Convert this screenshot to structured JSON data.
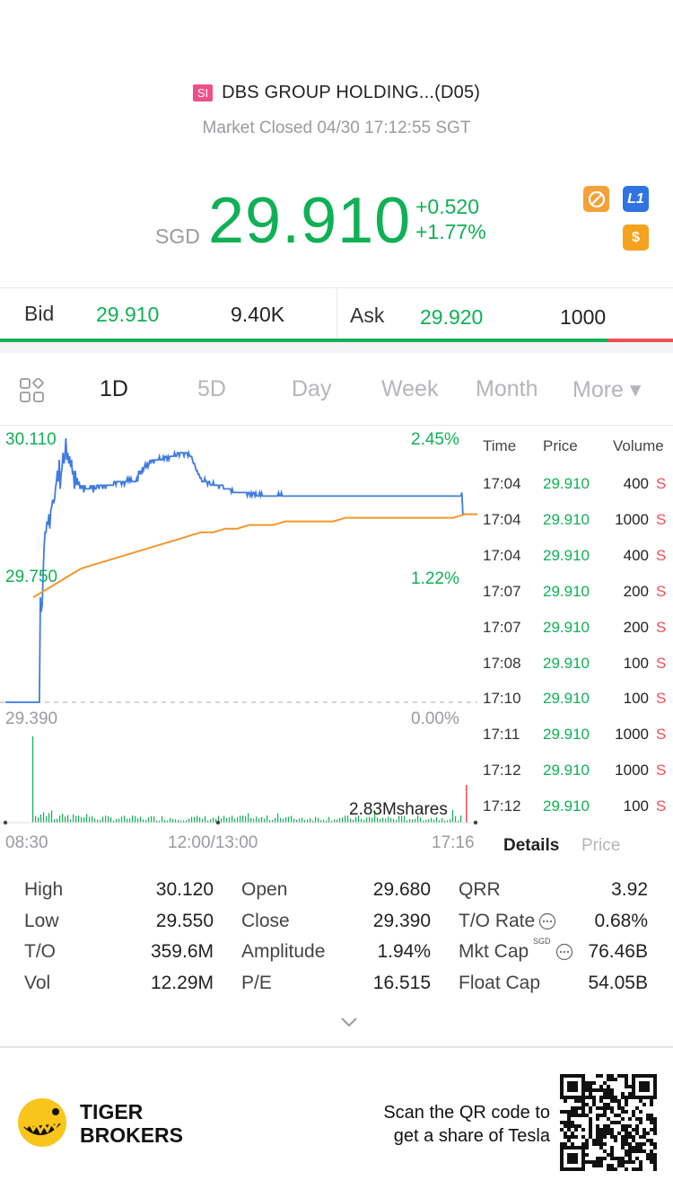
{
  "header": {
    "badge": "SI",
    "title": "DBS GROUP HOLDING...(D05)",
    "status": "Market Closed 04/30 17:12:55 SGT"
  },
  "quote": {
    "currency": "SGD",
    "price": "29.910",
    "change": "+0.520",
    "change_pct": "+1.77%",
    "icons": [
      "no-short-icon",
      "l1-icon",
      "dollar-icon"
    ],
    "l1_label": "L1",
    "dollar_label": "$"
  },
  "bidask": {
    "bid_label": "Bid",
    "bid_price": "29.910",
    "bid_vol": "9.40K",
    "ask_label": "Ask",
    "ask_price": "29.920",
    "ask_vol": "1000",
    "bid_ratio": 0.903
  },
  "tabs": {
    "items": [
      "1D",
      "5D",
      "Day",
      "Week",
      "Month",
      "More ▾"
    ],
    "active": "1D"
  },
  "chart": {
    "price_high_label": "30.110",
    "price_mid_label": "29.750",
    "price_low_label": "29.390",
    "pct_high_label": "2.45%",
    "pct_mid_label": "1.22%",
    "pct_low_label": "0.00%",
    "volume_label": "2.83Mshares",
    "x_labels": [
      "08:30",
      "12:00/13:00",
      "17:16"
    ],
    "colors": {
      "price_line": "#3f7be0",
      "avg_line": "#f2962c",
      "volume": "#10b055"
    }
  },
  "chart_data": {
    "type": "line",
    "ylim": [
      29.39,
      30.11
    ],
    "series": [
      {
        "values": [
          29.39,
          29.39,
          29.39,
          29.39,
          29.39,
          29.39,
          29.39,
          29.39,
          29.39,
          29.39,
          29.39,
          29.39,
          29.39,
          29.39,
          29.39,
          29.39,
          29.39,
          29.39,
          29.39,
          29.39,
          29.39,
          29.39,
          29.39,
          29.39,
          29.39,
          29.39,
          29.39,
          29.39,
          29.39,
          29.39,
          29.39,
          29.39,
          29.39,
          29.39,
          29.39,
          29.39,
          29.39,
          29.68,
          29.64,
          29.66,
          29.75,
          29.82,
          29.86,
          29.86,
          29.89,
          29.88,
          29.91,
          29.87,
          29.92,
          29.93,
          29.95,
          29.94,
          29.95,
          29.98,
          30.0,
          30.03,
          30.0,
          30.06,
          29.98,
          30.02,
          30.04,
          30.08,
          30.05,
          30.07,
          30.12,
          30.06,
          30.08,
          30.05,
          30.07,
          30.04,
          30.06,
          30.02,
          30.03,
          29.98,
          30.03,
          29.99,
          30.01,
          29.99,
          30.0,
          29.98,
          29.99,
          29.98,
          29.99,
          29.97,
          29.99,
          29.98,
          29.98,
          29.98,
          29.98,
          29.98,
          29.99,
          29.98,
          29.99,
          29.97,
          29.99,
          29.98,
          29.98,
          29.99,
          29.99,
          29.98,
          29.99,
          29.99,
          29.99,
          29.98,
          29.99,
          29.99,
          29.98,
          29.99,
          29.99,
          29.99,
          29.99,
          29.99,
          29.99,
          29.99,
          29.99,
          30.0,
          30.0,
          29.99,
          30.0,
          30.0,
          30.0,
          30.0,
          30.0,
          29.99,
          30.0,
          30.0,
          29.99,
          30.0,
          30.0,
          30.01,
          30.0,
          30.01,
          30.0,
          30.01,
          30.0,
          30.0,
          30.0,
          30.0,
          30.0,
          30.01,
          30.0,
          30.03,
          30.02,
          30.03,
          30.02,
          30.04,
          30.03,
          30.04,
          30.05,
          30.04,
          30.05,
          30.04,
          30.05,
          30.06,
          30.05,
          30.06,
          30.06,
          30.05,
          30.06,
          30.06,
          30.06,
          30.06,
          30.06,
          30.07,
          30.06,
          30.06,
          30.06,
          30.07,
          30.06,
          30.07,
          30.07,
          30.06,
          30.07,
          30.06,
          30.07,
          30.07,
          30.07,
          30.07,
          30.07,
          30.08,
          30.07,
          30.07,
          30.08,
          30.08,
          30.07,
          30.08,
          30.08,
          30.08,
          30.08,
          30.07,
          30.08,
          30.08,
          30.08,
          30.07,
          30.08,
          30.07,
          30.07,
          30.07,
          30.06,
          30.05,
          30.05,
          30.04,
          30.03,
          30.03,
          30.02,
          30.02,
          30.01,
          30.01,
          30.0,
          30.0,
          30.0,
          30.01,
          30.0,
          30.0,
          29.99,
          30.0,
          30.0,
          29.99,
          29.99,
          29.99,
          30.0,
          29.99,
          29.99,
          29.99,
          29.99,
          29.99,
          29.98,
          29.99,
          29.99,
          29.99,
          29.99,
          29.98,
          29.98,
          29.98,
          29.98,
          29.98,
          29.98,
          29.98,
          29.98,
          29.97,
          29.98,
          29.97,
          29.97,
          29.97,
          29.97,
          29.97,
          29.97,
          29.97,
          29.97,
          29.97,
          29.97,
          29.97,
          29.97,
          29.97,
          29.97,
          29.97,
          29.96,
          29.97,
          29.97,
          29.96,
          29.97,
          29.96,
          29.97,
          29.97,
          29.96,
          29.97,
          29.96,
          29.96,
          29.96,
          29.97,
          29.96,
          29.97,
          29.96,
          29.96,
          29.96,
          29.96,
          29.96,
          29.96,
          29.96,
          29.96,
          29.96,
          29.96,
          29.96,
          29.96,
          29.96,
          29.96,
          29.96,
          29.96,
          29.96,
          29.97,
          29.96,
          29.96,
          29.97,
          29.96,
          29.96,
          29.96,
          29.96,
          29.96,
          29.96,
          29.96,
          29.96,
          29.96,
          29.96,
          29.96,
          29.96,
          29.96,
          29.96,
          29.96,
          29.96,
          29.96,
          29.96,
          29.96,
          29.96,
          29.96,
          29.96,
          29.96,
          29.96,
          29.96,
          29.96,
          29.96,
          29.96,
          29.96,
          29.96,
          29.96,
          29.96,
          29.96,
          29.96,
          29.96,
          29.96,
          29.96,
          29.96,
          29.96,
          29.96,
          29.96,
          29.96,
          29.96,
          29.96,
          29.96,
          29.96,
          29.96,
          29.96,
          29.96,
          29.96,
          29.96,
          29.96,
          29.96,
          29.96,
          29.96,
          29.96,
          29.96,
          29.96,
          29.96,
          29.96,
          29.96,
          29.96,
          29.96,
          29.96,
          29.96,
          29.96,
          29.96,
          29.96,
          29.96,
          29.96,
          29.96,
          29.96,
          29.96,
          29.96,
          29.96,
          29.96,
          29.96,
          29.96,
          29.96,
          29.96,
          29.96,
          29.96,
          29.96,
          29.96,
          29.96,
          29.96,
          29.96,
          29.96,
          29.96,
          29.96,
          29.96,
          29.96,
          29.96,
          29.96,
          29.96,
          29.96,
          29.96,
          29.96,
          29.96,
          29.96,
          29.96,
          29.96,
          29.96,
          29.96,
          29.96,
          29.96,
          29.96,
          29.96,
          29.96,
          29.96,
          29.96,
          29.96,
          29.96,
          29.96,
          29.96,
          29.96,
          29.96,
          29.96,
          29.96,
          29.96,
          29.96,
          29.96,
          29.96,
          29.96,
          29.96,
          29.96,
          29.96,
          29.96,
          29.96,
          29.96,
          29.96,
          29.96,
          29.96,
          29.96,
          29.96,
          29.96,
          29.96,
          29.96,
          29.96,
          29.96,
          29.96,
          29.96,
          29.96,
          29.96,
          29.96,
          29.96,
          29.96,
          29.96,
          29.96,
          29.96,
          29.96,
          29.96,
          29.96,
          29.96,
          29.96,
          29.96,
          29.96,
          29.96,
          29.96,
          29.96,
          29.96,
          29.96,
          29.96,
          29.96,
          29.96,
          29.96,
          29.96,
          29.96,
          29.96,
          29.96,
          29.96,
          29.96,
          29.96,
          29.96,
          29.96,
          29.96,
          29.96,
          29.96,
          29.96,
          29.96,
          29.96,
          29.96,
          29.96,
          29.96,
          29.96,
          29.96,
          29.96,
          29.96,
          29.96,
          29.96,
          29.97,
          29.91,
          29.91,
          29.91,
          29.91,
          29.91
        ]
      },
      {
        "values": [
          29.68,
          29.7,
          29.72,
          29.74,
          29.76,
          29.77,
          29.78,
          29.79,
          29.8,
          29.81,
          29.82,
          29.83,
          29.84,
          29.85,
          29.86,
          29.86,
          29.87,
          29.87,
          29.88,
          29.88,
          29.88,
          29.89,
          29.89,
          29.89,
          29.89,
          29.89,
          29.9,
          29.9,
          29.9,
          29.9,
          29.9,
          29.9,
          29.9,
          29.9,
          29.9,
          29.9,
          29.91,
          29.91
        ]
      }
    ]
  },
  "trades": {
    "headers": [
      "Time",
      "Price",
      "Volume"
    ],
    "rows": [
      {
        "time": "17:04",
        "price": "29.910",
        "vol": "400",
        "side": "S"
      },
      {
        "time": "17:04",
        "price": "29.910",
        "vol": "1000",
        "side": "S"
      },
      {
        "time": "17:04",
        "price": "29.910",
        "vol": "400",
        "side": "S"
      },
      {
        "time": "17:07",
        "price": "29.910",
        "vol": "200",
        "side": "S"
      },
      {
        "time": "17:07",
        "price": "29.910",
        "vol": "200",
        "side": "S"
      },
      {
        "time": "17:08",
        "price": "29.910",
        "vol": "100",
        "side": "S"
      },
      {
        "time": "17:10",
        "price": "29.910",
        "vol": "100",
        "side": "S"
      },
      {
        "time": "17:11",
        "price": "29.910",
        "vol": "1000",
        "side": "S"
      },
      {
        "time": "17:12",
        "price": "29.910",
        "vol": "1000",
        "side": "S"
      },
      {
        "time": "17:12",
        "price": "29.910",
        "vol": "100",
        "side": "S"
      }
    ],
    "tab_details": "Details",
    "tab_price": "Price"
  },
  "stats": {
    "col1": [
      {
        "label": "High",
        "value": "30.120"
      },
      {
        "label": "Low",
        "value": "29.550"
      },
      {
        "label": "T/O",
        "value": "359.6M"
      },
      {
        "label": "Vol",
        "value": "12.29M"
      }
    ],
    "col2": [
      {
        "label": "Open",
        "value": "29.680"
      },
      {
        "label": "Close",
        "value": "29.390"
      },
      {
        "label": "Amplitude",
        "value": "1.94%"
      },
      {
        "label": "P/E",
        "value": "16.515"
      }
    ],
    "col3": [
      {
        "label": "QRR",
        "value": "3.92"
      },
      {
        "label": "T/O Rate",
        "value": "0.68%"
      },
      {
        "label": "Mkt Cap",
        "value": "76.46B"
      },
      {
        "label": "Float Cap",
        "value": "54.05B"
      }
    ],
    "mktcap_unit": "SGD"
  },
  "banner": {
    "brand_line1": "TIGER",
    "brand_line2": "BROKERS",
    "promo_line1": "Scan the QR code to",
    "promo_line2": "get a share of Tesla"
  }
}
